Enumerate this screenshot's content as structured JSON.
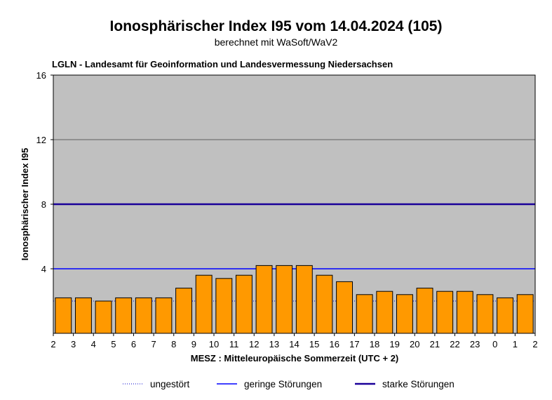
{
  "chart_data": {
    "type": "bar",
    "title": "Ionosphärischer Index I95 vom 14.04.2024 (105)",
    "subtitle": "berechnet mit WaSoft/WaV2",
    "source": "LGLN - Landesamt für Geoinformation und Landesvermessung Niedersachsen",
    "xlabel": "MESZ : Mitteleuropäische Sommerzeit (UTC + 2)",
    "ylabel": "Ionosphärischer Index I95",
    "ylim": [
      0,
      16
    ],
    "yticks": [
      "4",
      "8",
      "12",
      "16"
    ],
    "xticks": [
      "2",
      "3",
      "4",
      "5",
      "6",
      "7",
      "8",
      "9",
      "10",
      "11",
      "12",
      "13",
      "14",
      "15",
      "16",
      "17",
      "18",
      "19",
      "20",
      "21",
      "22",
      "23",
      "0",
      "1",
      "2"
    ],
    "values": [
      2.2,
      2.2,
      2.0,
      2.2,
      2.2,
      2.2,
      2.8,
      3.6,
      3.4,
      3.6,
      4.2,
      4.2,
      4.2,
      3.6,
      3.2,
      2.4,
      2.6,
      2.4,
      2.8,
      2.6,
      2.6,
      2.4,
      2.2,
      2.4
    ],
    "bar_color": "#ff9900",
    "plot_background": "#c0c0c0",
    "reference_lines": [
      {
        "name": "ungestört",
        "value": 2,
        "style": "dotted",
        "color": "#0000cc"
      },
      {
        "name": "geringe Störungen",
        "value": 4,
        "style": "solid",
        "color": "#0000ff"
      },
      {
        "name": "starke Störungen",
        "value": 8,
        "style": "thick",
        "color": "#1a0099"
      }
    ],
    "grid": true,
    "legend_position": "bottom"
  }
}
